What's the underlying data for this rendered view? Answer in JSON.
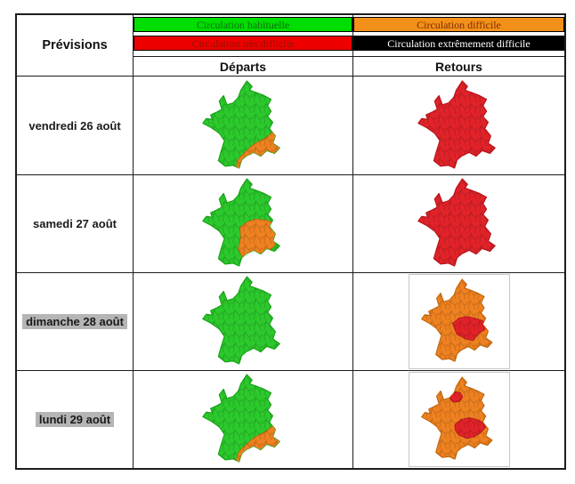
{
  "title_cell": "Prévisions",
  "legend": [
    {
      "label": "Circulation habituelle",
      "bar_color": "#00dd00",
      "text_color": "#0c700c"
    },
    {
      "label": "Circulation difficile",
      "bar_color": "#f39019",
      "text_color": "#7a2e00"
    },
    {
      "label": "Circulation très difficile",
      "bar_color": "#ee0000",
      "text_color": "#8e1200"
    },
    {
      "label": "Circulation extrêmement difficile",
      "bar_color": "#000000",
      "text_color": "#ffffff"
    }
  ],
  "column_headers": [
    "Départs",
    "Retours"
  ],
  "map_colors": {
    "green": {
      "fill": "#2cc92c",
      "stroke": "#16a316"
    },
    "orange": {
      "fill": "#ee8120",
      "stroke": "#c2660a"
    },
    "red": {
      "fill": "#e12329",
      "stroke": "#b8131a"
    }
  },
  "frame_color": "#c6c6c6",
  "highlight_color": "#b5b5b5",
  "rows": [
    {
      "date": "vendredi 26 août",
      "highlighted": false,
      "departs": {
        "base": "green",
        "regions": [
          {
            "id": "provence-coast",
            "color": "orange"
          }
        ],
        "framed": false
      },
      "retours": {
        "base": "red",
        "regions": [],
        "framed": false
      }
    },
    {
      "date": "samedi 27 août",
      "highlighted": false,
      "departs": {
        "base": "green",
        "regions": [
          {
            "id": "rhone-alpes",
            "color": "orange"
          }
        ],
        "framed": false
      },
      "retours": {
        "base": "red",
        "regions": [],
        "framed": false
      }
    },
    {
      "date": "dimanche 28 août",
      "highlighted": true,
      "departs": {
        "base": "green",
        "regions": [],
        "framed": false
      },
      "retours": {
        "base": "orange",
        "regions": [
          {
            "id": "auvergne-rhone-alpes",
            "color": "red"
          }
        ],
        "framed": true
      }
    },
    {
      "date": "lundi 29 août",
      "highlighted": true,
      "departs": {
        "base": "green",
        "regions": [
          {
            "id": "provence-coast",
            "color": "orange"
          }
        ],
        "framed": false
      },
      "retours": {
        "base": "orange",
        "regions": [
          {
            "id": "ile-de-france",
            "color": "red"
          },
          {
            "id": "rhone-alpes-south",
            "color": "red"
          }
        ],
        "framed": true
      }
    }
  ]
}
